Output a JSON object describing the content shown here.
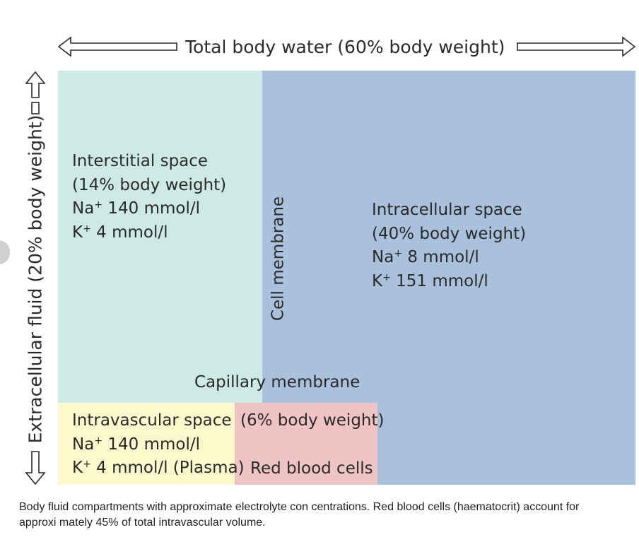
{
  "header": {
    "total_body_water": "Total body water (60% body weight)"
  },
  "side": {
    "extracellular_fluid": "Extracellular fluid (20% body weight)"
  },
  "interstitial": {
    "title": "Interstitial space",
    "weight": "(14% body weight)",
    "na_prefix": "Na",
    "na_value": " 140 mmol/l",
    "k_prefix": "K",
    "k_value": " 4 mmol/l",
    "charge": "+"
  },
  "cell_membrane": {
    "label": "Cell membrane"
  },
  "intracellular": {
    "title": "Intracellular space",
    "weight": "(40% body weight)",
    "na_prefix": "Na",
    "na_value": " 8 mmol/l",
    "k_prefix": "K",
    "k_value": " 151 mmol/l",
    "charge": "+"
  },
  "capillary_membrane": {
    "label": "Capillary membrane"
  },
  "intravascular": {
    "title": "Intravascular space",
    "na_prefix": "Na",
    "na_value": " 140 mmol/l",
    "k_prefix": "K",
    "k_value": " 4 mmol/l (Plasma)",
    "charge": "+"
  },
  "red_cells": {
    "weight": "(6% body weight)",
    "title": "Red blood cells"
  },
  "caption": {
    "line1": "Body fluid compartments with approximate electrolyte con centrations. Red blood cells (haematocrit) account for",
    "line2": "approxi mately 45% of total intravascular volume."
  },
  "colors": {
    "interstitial": "#cde9e3",
    "intracellular": "#a9c0dc",
    "intravascular": "#fcf8cc",
    "red_cells": "#efc2c4",
    "arrow": "#2a2a2a"
  }
}
